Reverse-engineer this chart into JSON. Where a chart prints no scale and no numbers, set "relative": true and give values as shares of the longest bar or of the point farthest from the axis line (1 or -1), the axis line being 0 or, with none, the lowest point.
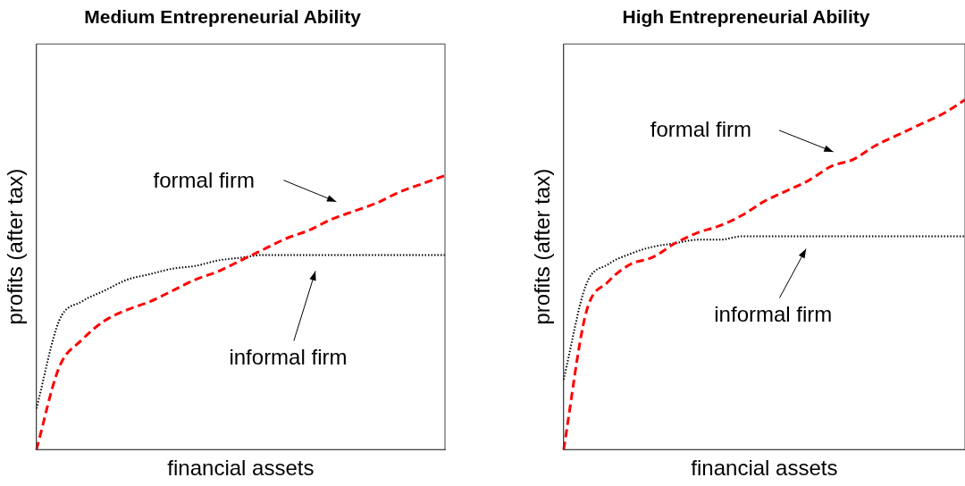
{
  "chart_data": [
    {
      "type": "line",
      "title": "Medium Entrepreneurial Ability",
      "xlabel": "financial assets",
      "ylabel": "profits (after tax)",
      "relative": true,
      "marker": "none",
      "categories": [
        null,
        null,
        null,
        null,
        null,
        null,
        null,
        null,
        null,
        null,
        null,
        null,
        null,
        null,
        null,
        null,
        null,
        null,
        null
      ],
      "series": [
        {
          "color": "#ff0000",
          "line_style": "dashed",
          "values": [
            0,
            0.3,
            0.4,
            0.47,
            0.51,
            0.54,
            0.58,
            0.62,
            0.65,
            0.69,
            0.73,
            0.77,
            0.8,
            0.84,
            0.87,
            0.9,
            0.94,
            0.97,
            1
          ]
        },
        {
          "color": "#000000",
          "line_style": "dotted",
          "values": [
            0.15,
            0.47,
            0.54,
            0.58,
            0.62,
            0.64,
            0.66,
            0.67,
            0.69,
            0.7,
            0.71,
            0.71,
            0.71,
            0.71,
            0.71,
            0.71,
            0.71,
            0.71,
            0.71
          ]
        }
      ],
      "annotations": [
        "formal firm",
        "informal firm"
      ]
    },
    {
      "type": "line",
      "title": "High Entrepreneurial Ability",
      "xlabel": "financial assets",
      "ylabel": "profits (after tax)",
      "relative": true,
      "marker": "none",
      "categories": [
        null,
        null,
        null,
        null,
        null,
        null,
        null,
        null,
        null,
        null,
        null,
        null,
        null,
        null,
        null,
        null,
        null,
        null,
        null
      ],
      "series": [
        {
          "color": "#ff0000",
          "line_style": "dashed",
          "values": [
            0,
            0.39,
            0.48,
            0.53,
            0.55,
            0.59,
            0.62,
            0.64,
            0.67,
            0.71,
            0.74,
            0.77,
            0.81,
            0.83,
            0.87,
            0.9,
            0.93,
            0.96,
            1
          ]
        },
        {
          "color": "#000000",
          "line_style": "dotted",
          "values": [
            0.2,
            0.47,
            0.53,
            0.56,
            0.58,
            0.59,
            0.6,
            0.6,
            0.61,
            0.61,
            0.61,
            0.61,
            0.61,
            0.61,
            0.61,
            0.61,
            0.61,
            0.61,
            0.61
          ]
        }
      ],
      "annotations": [
        "formal firm",
        "informal firm"
      ]
    }
  ]
}
